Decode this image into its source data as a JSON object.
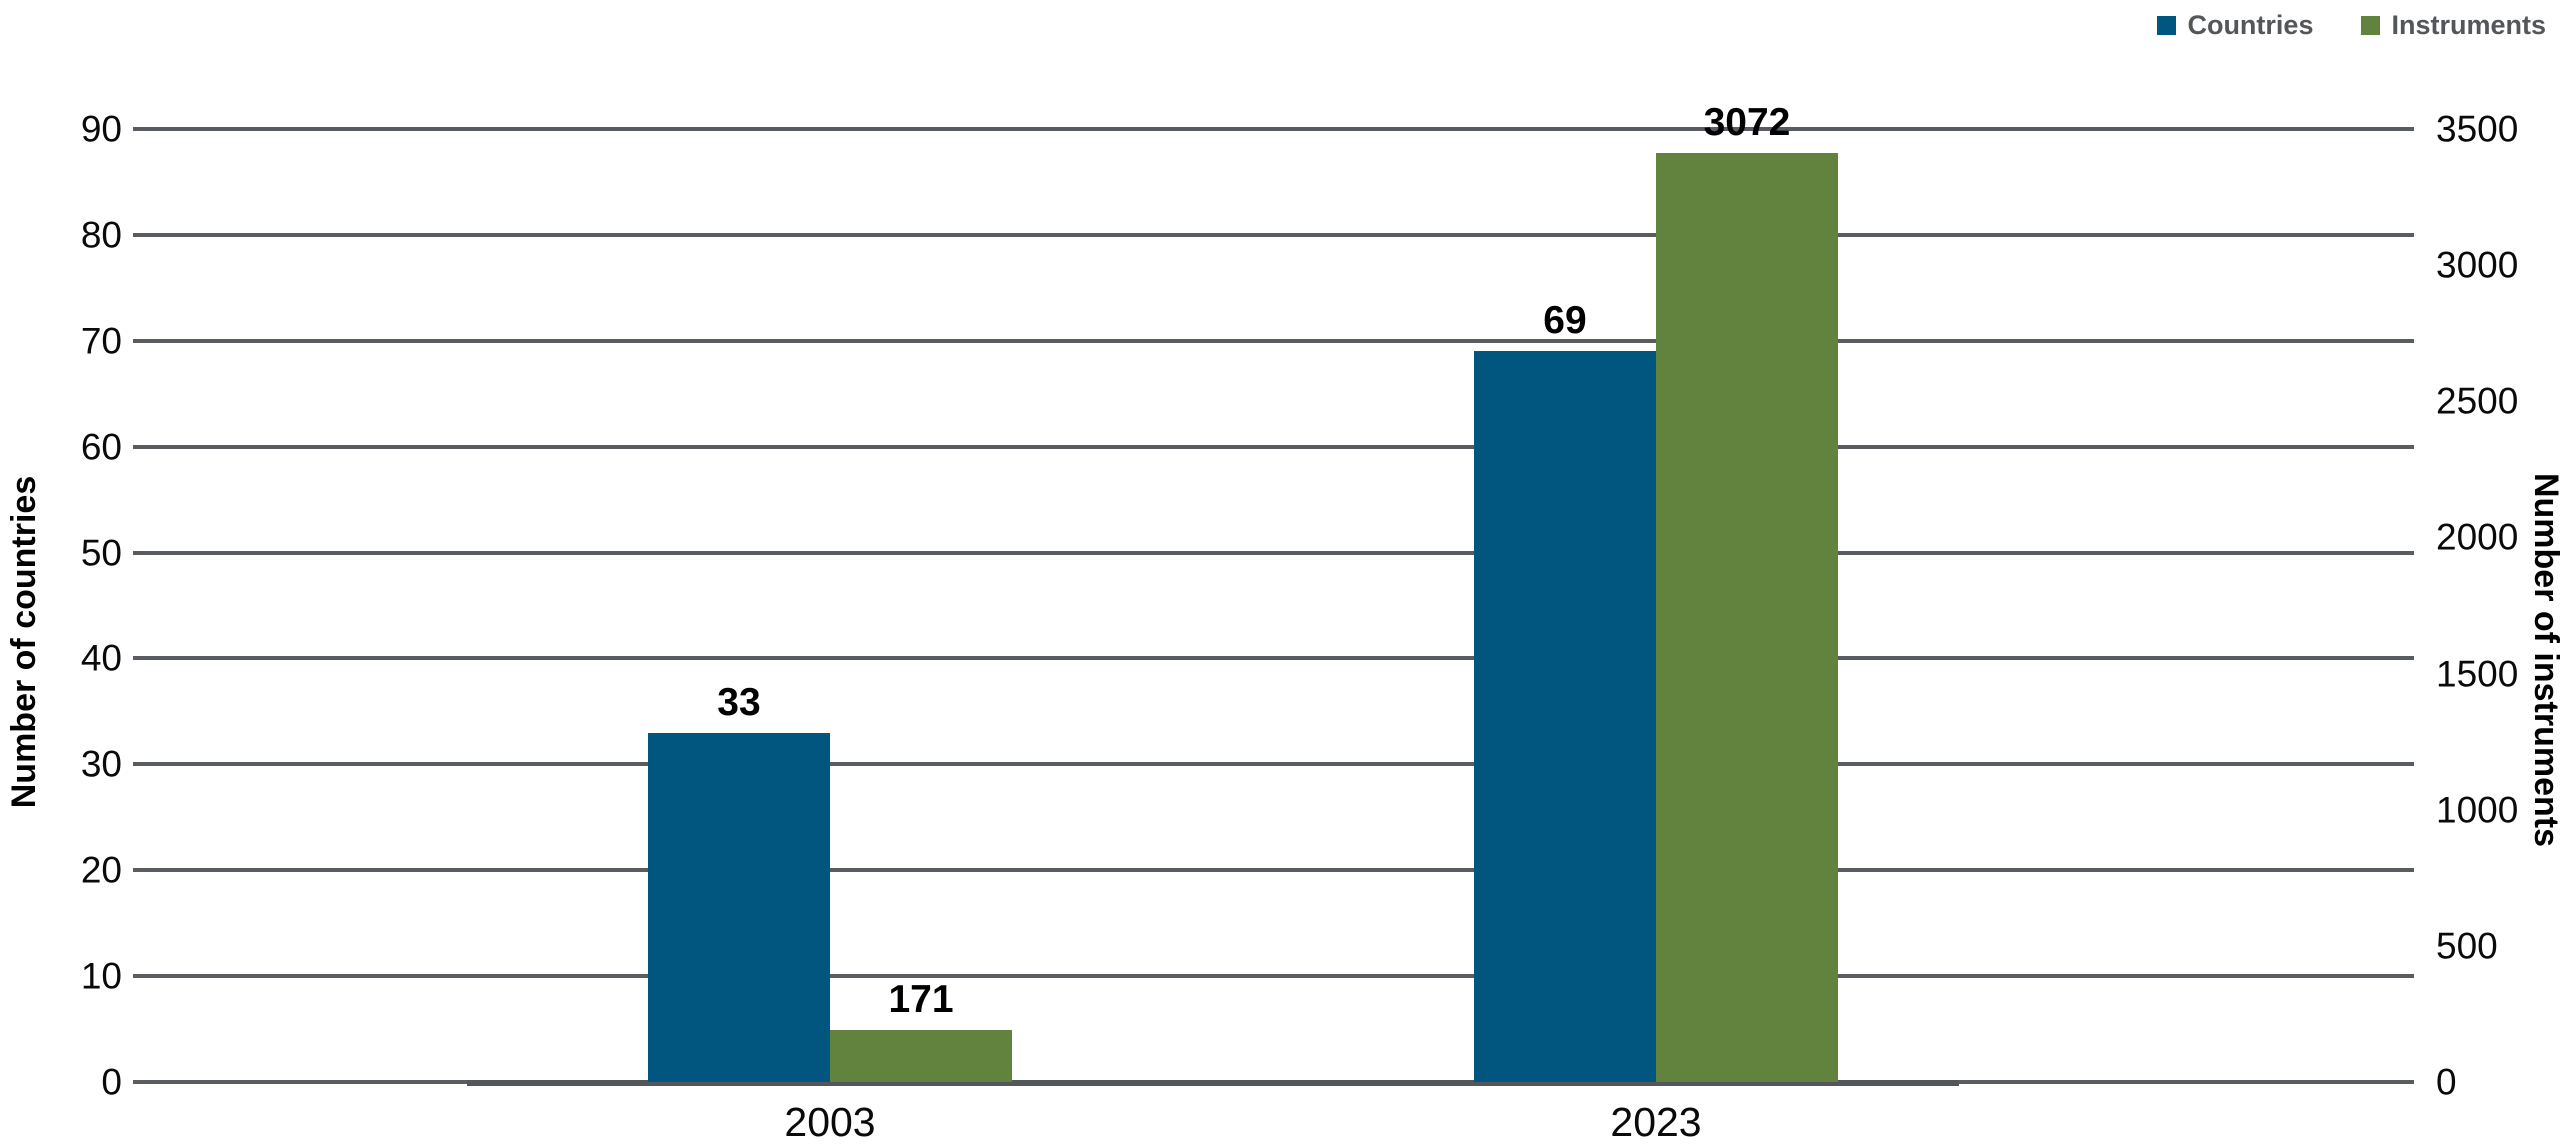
{
  "chart_data": {
    "type": "bar",
    "categories": [
      "2003",
      "2023"
    ],
    "series": [
      {
        "name": "Countries",
        "axis": "left",
        "color": "#00567F",
        "values": [
          33,
          69
        ]
      },
      {
        "name": "Instruments",
        "axis": "right",
        "color": "#61833E",
        "values": [
          171,
          3072
        ]
      }
    ],
    "data_labels": [
      [
        "33",
        "69"
      ],
      [
        "171",
        "3072"
      ]
    ],
    "left_axis": {
      "title": "Number of countries",
      "min": 0,
      "max": 90,
      "ticks": [
        "90",
        "80",
        "70",
        "60",
        "50",
        "40",
        "30",
        "20",
        "10",
        "0"
      ]
    },
    "right_axis": {
      "title": "Number of instruments",
      "min": 0,
      "max": 3500,
      "ticks": [
        "3500",
        "3000",
        "2500",
        "2000",
        "1500",
        "1000",
        "500",
        "0"
      ]
    },
    "legend": {
      "position": "top-right",
      "entries": [
        "Countries",
        "Instruments"
      ]
    },
    "grid": "horizontal"
  }
}
